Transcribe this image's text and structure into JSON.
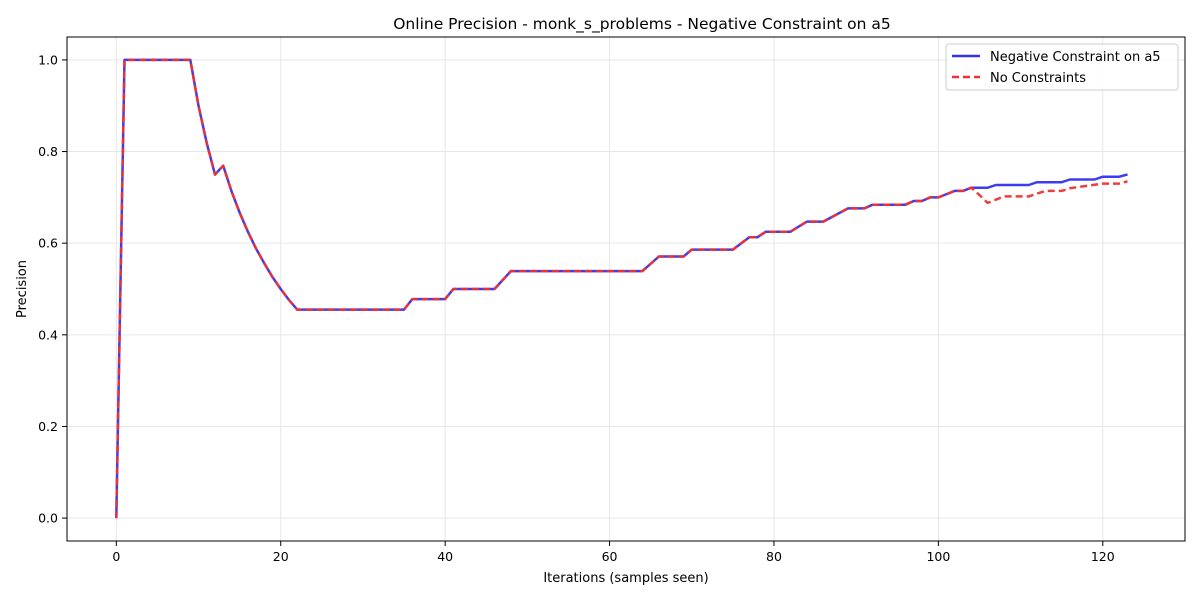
{
  "chart_data": {
    "type": "line",
    "title": "Online Precision - monk_s_problems - Negative Constraint on a5",
    "xlabel": "Iterations (samples seen)",
    "ylabel": "Precision",
    "xlim": [
      -6,
      130
    ],
    "ylim": [
      -0.05,
      1.05
    ],
    "x_ticks": [
      0,
      20,
      40,
      60,
      80,
      100,
      120
    ],
    "y_ticks": [
      0.0,
      0.2,
      0.4,
      0.6,
      0.8,
      1.0
    ],
    "x_tick_labels": [
      "0",
      "20",
      "40",
      "60",
      "80",
      "100",
      "120"
    ],
    "y_tick_labels": [
      "0.0",
      "0.2",
      "0.4",
      "0.6",
      "0.8",
      "1.0"
    ],
    "grid": true,
    "legend_position": "top-right",
    "series": [
      {
        "name": "Negative Constraint on a5",
        "color": "#3333ee",
        "style": "solid",
        "x": [
          0,
          1,
          9,
          10,
          11,
          12,
          13,
          14,
          15,
          16,
          17,
          18,
          19,
          20,
          21,
          22,
          35,
          36,
          40,
          41,
          46,
          48,
          64,
          66,
          69,
          70,
          75,
          77,
          78,
          79,
          82,
          84,
          86,
          89,
          91,
          92,
          96,
          97,
          98,
          99,
          100,
          102,
          103,
          104,
          106,
          107,
          111,
          112,
          115,
          116,
          119,
          120,
          122,
          123
        ],
        "y": [
          0.0,
          1.0,
          1.0,
          0.9,
          0.818,
          0.75,
          0.769,
          0.714,
          0.667,
          0.625,
          0.588,
          0.556,
          0.526,
          0.5,
          0.476,
          0.455,
          0.455,
          0.478,
          0.478,
          0.5,
          0.5,
          0.539,
          0.539,
          0.571,
          0.571,
          0.586,
          0.586,
          0.613,
          0.613,
          0.625,
          0.625,
          0.647,
          0.647,
          0.676,
          0.676,
          0.684,
          0.684,
          0.692,
          0.692,
          0.7,
          0.7,
          0.714,
          0.714,
          0.721,
          0.721,
          0.727,
          0.727,
          0.733,
          0.733,
          0.739,
          0.739,
          0.745,
          0.745,
          0.75
        ]
      },
      {
        "name": "No Constraints",
        "color": "#ee3333",
        "style": "dashed",
        "x": [
          0,
          1,
          9,
          10,
          11,
          12,
          13,
          14,
          15,
          16,
          17,
          18,
          19,
          20,
          21,
          22,
          35,
          36,
          40,
          41,
          46,
          48,
          64,
          66,
          69,
          70,
          75,
          77,
          78,
          79,
          82,
          84,
          86,
          89,
          91,
          92,
          96,
          97,
          98,
          99,
          100,
          102,
          103,
          104,
          105,
          106,
          108,
          111,
          113,
          115,
          116,
          118,
          120,
          122,
          123
        ],
        "y": [
          0.0,
          1.0,
          1.0,
          0.9,
          0.818,
          0.75,
          0.769,
          0.714,
          0.667,
          0.625,
          0.588,
          0.556,
          0.526,
          0.5,
          0.476,
          0.455,
          0.455,
          0.478,
          0.478,
          0.5,
          0.5,
          0.539,
          0.539,
          0.571,
          0.571,
          0.586,
          0.586,
          0.613,
          0.613,
          0.625,
          0.625,
          0.647,
          0.647,
          0.676,
          0.676,
          0.684,
          0.684,
          0.692,
          0.692,
          0.7,
          0.7,
          0.714,
          0.714,
          0.721,
          0.705,
          0.688,
          0.702,
          0.702,
          0.714,
          0.714,
          0.72,
          0.725,
          0.73,
          0.73,
          0.735
        ]
      }
    ]
  }
}
